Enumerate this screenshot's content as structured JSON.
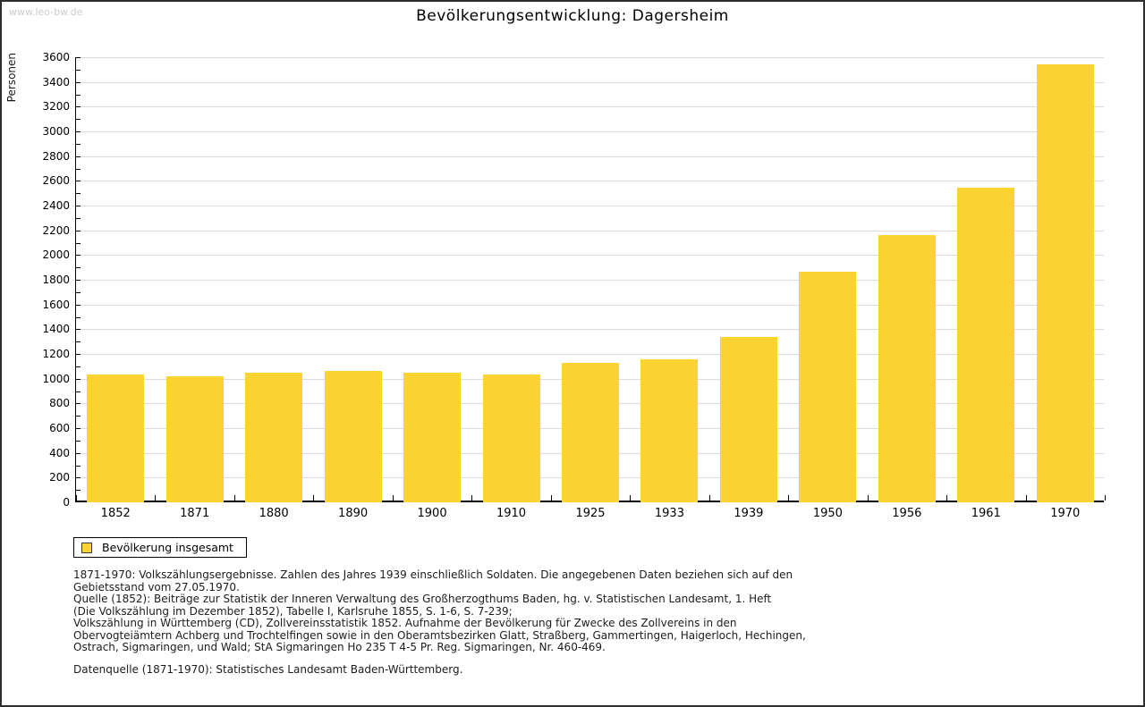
{
  "page": {
    "watermark": "www.leo-bw.de"
  },
  "chart_data": {
    "type": "bar",
    "title": "Bevölkerungsentwicklung: Dagersheim",
    "xlabel": "",
    "ylabel": "Personen",
    "ylim": [
      0,
      3600
    ],
    "ytick_step": 200,
    "minor_tick_step": 100,
    "grid": true,
    "legend_position": "bottom-left",
    "bar_color": "#FCD330",
    "grid_color": "#dcdcdc",
    "categories": [
      "1852",
      "1871",
      "1880",
      "1890",
      "1900",
      "1910",
      "1925",
      "1933",
      "1939",
      "1950",
      "1956",
      "1961",
      "1970"
    ],
    "values": [
      1034,
      1017,
      1048,
      1065,
      1046,
      1034,
      1130,
      1159,
      1337,
      1863,
      2164,
      2542,
      3542
    ],
    "legend": {
      "label": "Bevölkerung insgesamt"
    }
  },
  "notes": {
    "lines": [
      "1871-1970: Volkszählungsergebnisse. Zahlen des Jahres 1939 einschließlich Soldaten. Die angegebenen Daten beziehen sich auf den",
      "Gebietsstand vom 27.05.1970.",
      "Quelle (1852): Beiträge zur Statistik der Inneren Verwaltung des Großherzogthums Baden, hg. v. Statistischen Landesamt, 1. Heft",
      "(Die Volkszählung im Dezember 1852), Tabelle I, Karlsruhe 1855, S. 1-6, S. 7-239;",
      "Volkszählung in Württemberg (CD), Zollvereinsstatistik 1852. Aufnahme der Bevölkerung für Zwecke des Zollvereins in den",
      "Obervogteiämtern Achberg und Trochtelfingen sowie in den Oberamtsbezirken Glatt, Straßberg, Gammertingen, Haigerloch, Hechingen,",
      "Ostrach, Sigmaringen, und Wald; StA Sigmaringen Ho 235 T 4-5 Pr. Reg. Sigmaringen, Nr. 460-469."
    ],
    "datasource": "Datenquelle (1871-1970): Statistisches Landesamt Baden-Württemberg."
  }
}
